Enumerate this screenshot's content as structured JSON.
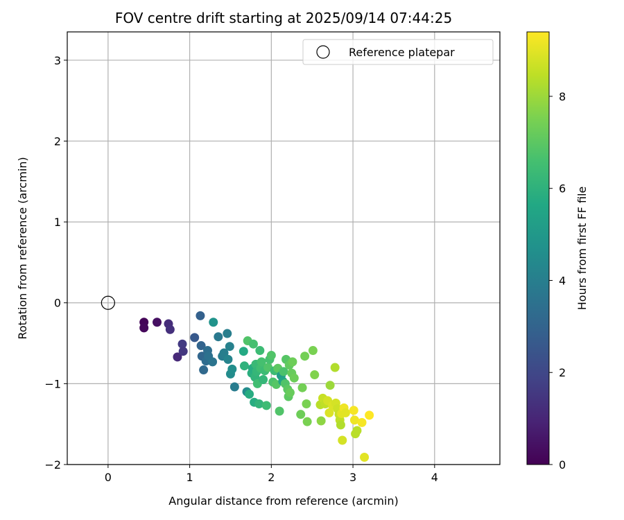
{
  "chart_data": {
    "type": "scatter",
    "title": "FOV centre drift starting at 2025/09/14 07:44:25",
    "xlabel": "Angular distance from reference (arcmin)",
    "ylabel": "Rotation from reference (arcmin)",
    "xlim": [
      -0.5,
      4.8
    ],
    "ylim": [
      -2.0,
      3.35
    ],
    "xticks": [
      0,
      1,
      2,
      3,
      4
    ],
    "yticks": [
      -2,
      -1,
      0,
      1,
      2,
      3
    ],
    "grid": true,
    "legend": {
      "location": "upper right",
      "entries": [
        "Reference platepar"
      ]
    },
    "reference_point": {
      "label": "Reference platepar",
      "x": 0,
      "y": 0
    },
    "colorbar": {
      "label": "Hours from first FF file",
      "range": [
        0,
        9.4
      ],
      "ticks": [
        0,
        2,
        4,
        6,
        8
      ],
      "colormap": "viridis"
    },
    "points": [
      {
        "x": 0.44,
        "y": -0.24,
        "h": 0.1
      },
      {
        "x": 0.44,
        "y": -0.31,
        "h": 0.2
      },
      {
        "x": 0.6,
        "y": -0.24,
        "h": 0.4
      },
      {
        "x": 0.74,
        "y": -0.26,
        "h": 1.2
      },
      {
        "x": 0.76,
        "y": -0.33,
        "h": 1.3
      },
      {
        "x": 0.85,
        "y": -0.67,
        "h": 1.1
      },
      {
        "x": 0.91,
        "y": -0.51,
        "h": 1.6
      },
      {
        "x": 0.92,
        "y": -0.6,
        "h": 1.5
      },
      {
        "x": 1.06,
        "y": -0.43,
        "h": 2.6
      },
      {
        "x": 1.13,
        "y": -0.16,
        "h": 2.9
      },
      {
        "x": 1.14,
        "y": -0.53,
        "h": 3.0
      },
      {
        "x": 1.15,
        "y": -0.66,
        "h": 3.1
      },
      {
        "x": 1.17,
        "y": -0.83,
        "h": 3.2
      },
      {
        "x": 1.2,
        "y": -0.72,
        "h": 3.3
      },
      {
        "x": 1.22,
        "y": -0.59,
        "h": 3.4
      },
      {
        "x": 1.23,
        "y": -0.66,
        "h": 3.5
      },
      {
        "x": 1.28,
        "y": -0.73,
        "h": 3.6
      },
      {
        "x": 1.29,
        "y": -0.24,
        "h": 4.8
      },
      {
        "x": 1.35,
        "y": -0.42,
        "h": 3.8
      },
      {
        "x": 1.4,
        "y": -0.66,
        "h": 3.9
      },
      {
        "x": 1.42,
        "y": -0.62,
        "h": 4.0
      },
      {
        "x": 1.46,
        "y": -0.38,
        "h": 4.0
      },
      {
        "x": 1.47,
        "y": -0.7,
        "h": 4.2
      },
      {
        "x": 1.49,
        "y": -0.54,
        "h": 4.1
      },
      {
        "x": 1.5,
        "y": -0.88,
        "h": 4.5
      },
      {
        "x": 1.52,
        "y": -0.82,
        "h": 4.6
      },
      {
        "x": 1.55,
        "y": -1.04,
        "h": 3.9
      },
      {
        "x": 1.66,
        "y": -0.6,
        "h": 5.7
      },
      {
        "x": 1.67,
        "y": -0.78,
        "h": 6.0
      },
      {
        "x": 1.7,
        "y": -1.1,
        "h": 4.5
      },
      {
        "x": 1.71,
        "y": -0.47,
        "h": 6.8
      },
      {
        "x": 1.73,
        "y": -1.13,
        "h": 5.8
      },
      {
        "x": 1.76,
        "y": -0.87,
        "h": 5.9
      },
      {
        "x": 1.77,
        "y": -0.81,
        "h": 5.8
      },
      {
        "x": 1.78,
        "y": -0.51,
        "h": 6.6
      },
      {
        "x": 1.79,
        "y": -1.23,
        "h": 5.8
      },
      {
        "x": 1.8,
        "y": -0.92,
        "h": 6.1
      },
      {
        "x": 1.81,
        "y": -0.76,
        "h": 6.3
      },
      {
        "x": 1.82,
        "y": -0.85,
        "h": 6.2
      },
      {
        "x": 1.83,
        "y": -1.0,
        "h": 6.5
      },
      {
        "x": 1.85,
        "y": -1.25,
        "h": 6.1
      },
      {
        "x": 1.86,
        "y": -0.59,
        "h": 6.4
      },
      {
        "x": 1.87,
        "y": -0.81,
        "h": 6.5
      },
      {
        "x": 1.88,
        "y": -0.73,
        "h": 6.6
      },
      {
        "x": 1.9,
        "y": -0.95,
        "h": 6.2
      },
      {
        "x": 1.92,
        "y": -0.84,
        "h": 6.4
      },
      {
        "x": 1.94,
        "y": -1.27,
        "h": 6.4
      },
      {
        "x": 1.96,
        "y": -0.8,
        "h": 6.8
      },
      {
        "x": 1.98,
        "y": -0.7,
        "h": 6.6
      },
      {
        "x": 2.0,
        "y": -0.65,
        "h": 6.8
      },
      {
        "x": 2.02,
        "y": -0.98,
        "h": 6.7
      },
      {
        "x": 2.04,
        "y": -0.84,
        "h": 6.4
      },
      {
        "x": 2.06,
        "y": -1.01,
        "h": 6.9
      },
      {
        "x": 2.08,
        "y": -0.81,
        "h": 7.0
      },
      {
        "x": 2.1,
        "y": -1.34,
        "h": 6.8
      },
      {
        "x": 2.12,
        "y": -0.9,
        "h": 5.2
      },
      {
        "x": 2.14,
        "y": -0.97,
        "h": 5.5
      },
      {
        "x": 2.15,
        "y": -0.85,
        "h": 6.7
      },
      {
        "x": 2.17,
        "y": -1.0,
        "h": 6.8
      },
      {
        "x": 2.18,
        "y": -0.7,
        "h": 6.9
      },
      {
        "x": 2.2,
        "y": -1.07,
        "h": 7.0
      },
      {
        "x": 2.21,
        "y": -1.16,
        "h": 7.0
      },
      {
        "x": 2.22,
        "y": -0.77,
        "h": 7.1
      },
      {
        "x": 2.23,
        "y": -1.11,
        "h": 7.2
      },
      {
        "x": 2.25,
        "y": -0.87,
        "h": 7.2
      },
      {
        "x": 2.26,
        "y": -0.73,
        "h": 7.3
      },
      {
        "x": 2.28,
        "y": -0.93,
        "h": 7.3
      },
      {
        "x": 2.36,
        "y": -1.38,
        "h": 7.3
      },
      {
        "x": 2.38,
        "y": -1.05,
        "h": 7.4
      },
      {
        "x": 2.41,
        "y": -0.66,
        "h": 7.4
      },
      {
        "x": 2.43,
        "y": -1.25,
        "h": 7.5
      },
      {
        "x": 2.44,
        "y": -1.47,
        "h": 7.5
      },
      {
        "x": 2.51,
        "y": -0.59,
        "h": 7.5
      },
      {
        "x": 2.53,
        "y": -0.89,
        "h": 7.6
      },
      {
        "x": 2.6,
        "y": -1.26,
        "h": 8.4
      },
      {
        "x": 2.61,
        "y": -1.46,
        "h": 7.8
      },
      {
        "x": 2.63,
        "y": -1.18,
        "h": 8.6
      },
      {
        "x": 2.66,
        "y": -1.25,
        "h": 8.5
      },
      {
        "x": 2.69,
        "y": -1.21,
        "h": 8.8
      },
      {
        "x": 2.71,
        "y": -1.36,
        "h": 8.9
      },
      {
        "x": 2.72,
        "y": -1.02,
        "h": 8.0
      },
      {
        "x": 2.75,
        "y": -1.27,
        "h": 8.9
      },
      {
        "x": 2.78,
        "y": -0.8,
        "h": 8.3
      },
      {
        "x": 2.79,
        "y": -1.24,
        "h": 8.8
      },
      {
        "x": 2.81,
        "y": -1.31,
        "h": 8.7
      },
      {
        "x": 2.83,
        "y": -1.38,
        "h": 8.6
      },
      {
        "x": 2.84,
        "y": -1.45,
        "h": 8.5
      },
      {
        "x": 2.85,
        "y": -1.51,
        "h": 8.3
      },
      {
        "x": 2.86,
        "y": -1.37,
        "h": 9.0
      },
      {
        "x": 2.87,
        "y": -1.7,
        "h": 8.8
      },
      {
        "x": 2.89,
        "y": -1.3,
        "h": 9.2
      },
      {
        "x": 2.91,
        "y": -1.36,
        "h": 9.0
      },
      {
        "x": 3.01,
        "y": -1.33,
        "h": 9.3
      },
      {
        "x": 3.02,
        "y": -1.45,
        "h": 9.2
      },
      {
        "x": 3.03,
        "y": -1.62,
        "h": 8.4
      },
      {
        "x": 3.05,
        "y": -1.58,
        "h": 8.4
      },
      {
        "x": 3.11,
        "y": -1.48,
        "h": 9.3
      },
      {
        "x": 3.14,
        "y": -1.91,
        "h": 9.0
      },
      {
        "x": 3.2,
        "y": -1.39,
        "h": 9.4
      }
    ]
  }
}
